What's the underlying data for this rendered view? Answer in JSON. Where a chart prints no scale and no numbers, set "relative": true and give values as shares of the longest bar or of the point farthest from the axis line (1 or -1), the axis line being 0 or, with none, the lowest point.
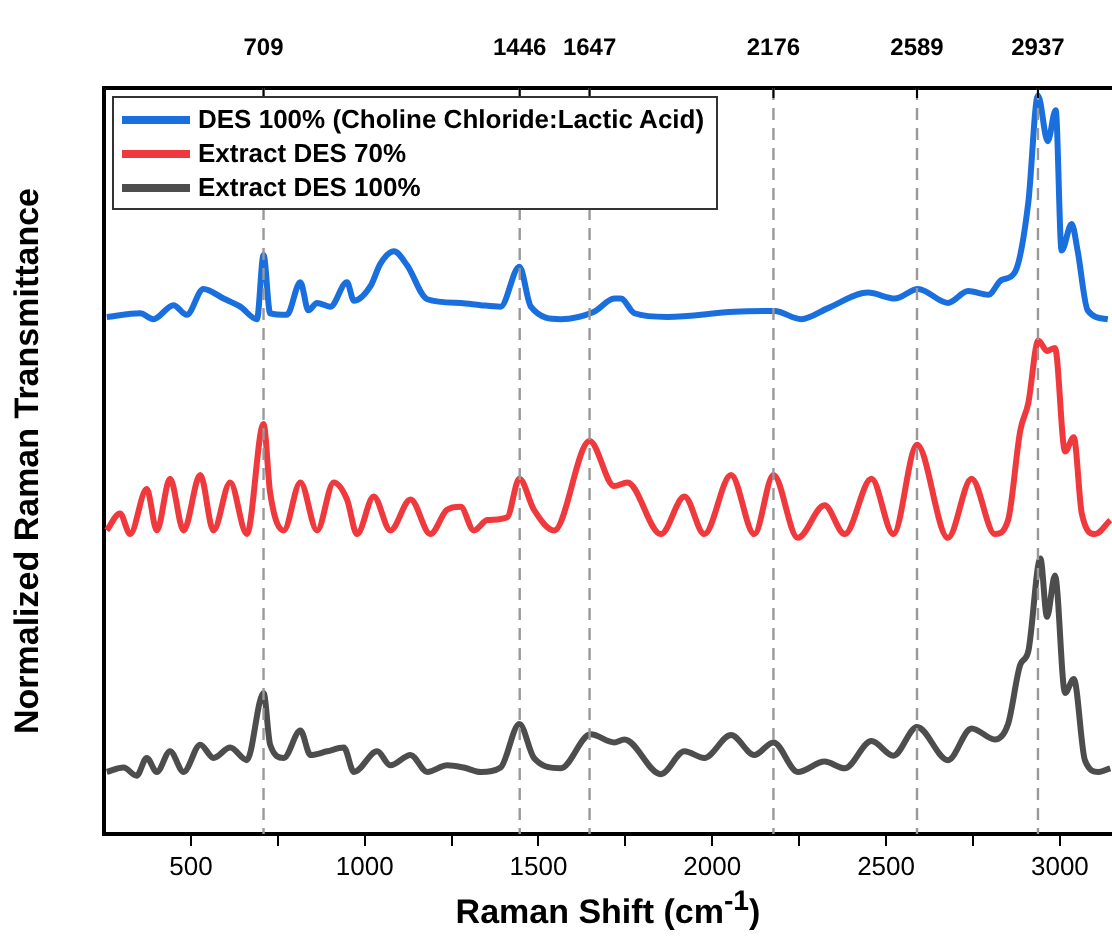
{
  "chart_data": {
    "type": "line",
    "xlabel": "Raman Shift (cm$^{-1}$)",
    "ylabel": "Normalized Raman Transmittance",
    "relative": true,
    "xlim": [
      250,
      3150
    ],
    "xticks": [
      500,
      {
        "value": 750,
        "label": null
      },
      1000,
      {
        "value": 1250,
        "label": null
      },
      1500,
      {
        "value": 1750,
        "label": null
      },
      2000,
      {
        "value": 2250,
        "label": null
      },
      2500,
      {
        "value": 2750,
        "label": null
      },
      3000
    ],
    "grid": false,
    "legend": "top left",
    "marker": "none",
    "line_style": "solid",
    "ref_lines": [
      {
        "axis": "x",
        "value": 709,
        "label": "709",
        "color": "#999999",
        "line_style": "dashed"
      },
      {
        "axis": "x",
        "value": 1446,
        "label": "1446",
        "color": "#999999",
        "line_style": "dashed"
      },
      {
        "axis": "x",
        "value": 1647,
        "label": "1647",
        "color": "#999999",
        "line_style": "dashed"
      },
      {
        "axis": "x",
        "value": 2176,
        "label": "2176",
        "color": "#999999",
        "line_style": "dashed"
      },
      {
        "axis": "x",
        "value": 2589,
        "label": "2589",
        "color": "#999999",
        "line_style": "dashed"
      },
      {
        "axis": "x",
        "value": 2937,
        "label": "2937",
        "color": "#999999",
        "line_style": "dashed"
      }
    ],
    "series": [
      {
        "name": "DES 100% (Choline Chloride:Lactic Acid)",
        "color": "#1a6fdf",
        "x": [
          258,
          354,
          392,
          450,
          488,
          536,
          594,
          642,
          690,
          709,
          728,
          776,
          815,
          838,
          863,
          901,
          949,
          969,
          1017,
          1045,
          1084,
          1122,
          1180,
          1276,
          1334,
          1391,
          1445,
          1478,
          1564,
          1660,
          1718,
          1737,
          1776,
          1871,
          2064,
          2179,
          2256,
          2333,
          2448,
          2525,
          2592,
          2678,
          2736,
          2794,
          2832,
          2871,
          2909,
          2937,
          2965,
          2988,
          3005,
          3034,
          3051,
          3080,
          3138
        ],
        "values": [
          0.7,
          0.705,
          0.697,
          0.716,
          0.703,
          0.738,
          0.725,
          0.714,
          0.697,
          0.784,
          0.705,
          0.703,
          0.747,
          0.709,
          0.719,
          0.714,
          0.747,
          0.722,
          0.742,
          0.772,
          0.789,
          0.77,
          0.724,
          0.719,
          0.716,
          0.714,
          0.768,
          0.714,
          0.697,
          0.707,
          0.725,
          0.725,
          0.705,
          0.7,
          0.707,
          0.708,
          0.697,
          0.712,
          0.733,
          0.725,
          0.738,
          0.719,
          0.735,
          0.73,
          0.75,
          0.761,
          0.854,
          1.0,
          0.938,
          0.98,
          0.79,
          0.826,
          0.79,
          0.709,
          0.697
        ]
      },
      {
        "name": "Extract DES 70%",
        "color": "#f0393c",
        "x": [
          258,
          296,
          325,
          373,
          402,
          440,
          479,
          527,
          565,
          613,
          661,
          709,
          728,
          767,
          815,
          863,
          911,
          949,
          978,
          1026,
          1074,
          1132,
          1189,
          1237,
          1276,
          1314,
          1353,
          1410,
          1445,
          1487,
          1545,
          1647,
          1718,
          1756,
          1852,
          1920,
          1977,
          2054,
          2121,
          2176,
          2246,
          2323,
          2381,
          2458,
          2521,
          2589,
          2678,
          2746,
          2813,
          2851,
          2886,
          2909,
          2938,
          2963,
          2986,
          3015,
          3040,
          3063,
          3101,
          3145
        ],
        "values": [
          0.411,
          0.434,
          0.406,
          0.467,
          0.411,
          0.481,
          0.411,
          0.486,
          0.411,
          0.476,
          0.406,
          0.555,
          0.462,
          0.411,
          0.476,
          0.411,
          0.476,
          0.453,
          0.406,
          0.457,
          0.411,
          0.453,
          0.406,
          0.439,
          0.443,
          0.411,
          0.425,
          0.429,
          0.481,
          0.439,
          0.411,
          0.532,
          0.471,
          0.476,
          0.406,
          0.457,
          0.406,
          0.486,
          0.406,
          0.486,
          0.401,
          0.445,
          0.406,
          0.481,
          0.406,
          0.527,
          0.401,
          0.481,
          0.406,
          0.425,
          0.546,
          0.583,
          0.668,
          0.654,
          0.658,
          0.518,
          0.537,
          0.434,
          0.406,
          0.425
        ]
      },
      {
        "name": "Extract DES 100%",
        "color": "#4d4d4d",
        "x": [
          258,
          306,
          344,
          373,
          402,
          440,
          479,
          527,
          565,
          613,
          661,
          709,
          728,
          767,
          815,
          844,
          892,
          940,
          969,
          1036,
          1074,
          1132,
          1180,
          1237,
          1285,
          1334,
          1391,
          1445,
          1487,
          1564,
          1650,
          1718,
          1747,
          1852,
          1920,
          1977,
          2054,
          2121,
          2176,
          2246,
          2323,
          2381,
          2458,
          2521,
          2589,
          2678,
          2746,
          2813,
          2851,
          2886,
          2909,
          2944,
          2963,
          2986,
          3015,
          3040,
          3072,
          3111,
          3145
        ],
        "values": [
          0.084,
          0.09,
          0.079,
          0.103,
          0.084,
          0.112,
          0.084,
          0.121,
          0.103,
          0.117,
          0.1,
          0.191,
          0.121,
          0.103,
          0.14,
          0.107,
          0.112,
          0.117,
          0.084,
          0.112,
          0.093,
          0.107,
          0.084,
          0.093,
          0.09,
          0.084,
          0.09,
          0.149,
          0.103,
          0.089,
          0.135,
          0.124,
          0.128,
          0.081,
          0.112,
          0.103,
          0.134,
          0.107,
          0.124,
          0.084,
          0.098,
          0.089,
          0.126,
          0.106,
          0.145,
          0.1,
          0.143,
          0.128,
          0.149,
          0.229,
          0.247,
          0.373,
          0.294,
          0.35,
          0.191,
          0.21,
          0.1,
          0.084,
          0.089
        ]
      }
    ]
  }
}
